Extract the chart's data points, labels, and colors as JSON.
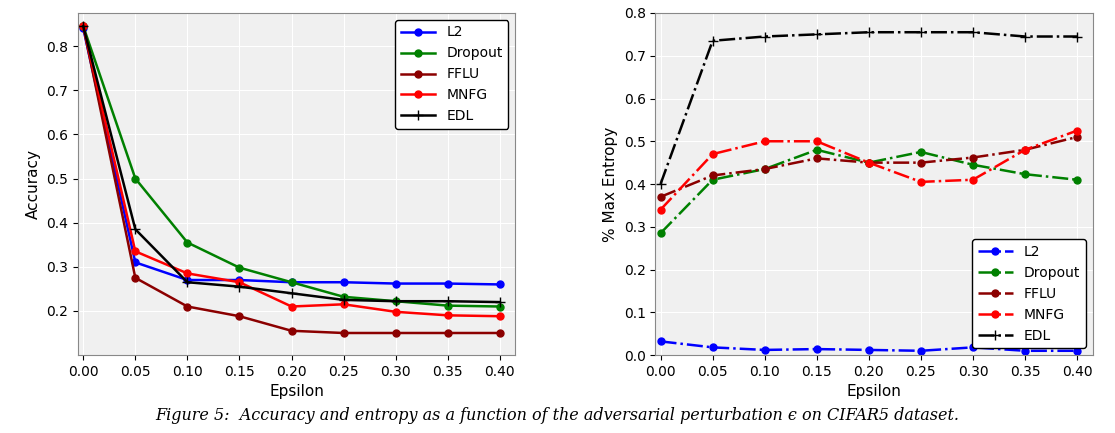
{
  "epsilon": [
    0.0,
    0.05,
    0.1,
    0.15,
    0.2,
    0.25,
    0.3,
    0.35,
    0.4
  ],
  "acc": {
    "L2": [
      0.84,
      0.31,
      0.27,
      0.27,
      0.265,
      0.265,
      0.262,
      0.262,
      0.26
    ],
    "Dropout": [
      0.845,
      0.5,
      0.355,
      0.298,
      0.265,
      0.232,
      0.222,
      0.212,
      0.21
    ],
    "FFLU": [
      0.845,
      0.275,
      0.21,
      0.188,
      0.155,
      0.15,
      0.15,
      0.15,
      0.15
    ],
    "MNFG": [
      0.845,
      0.335,
      0.285,
      0.265,
      0.21,
      0.215,
      0.198,
      0.19,
      0.188
    ],
    "EDL": [
      0.845,
      0.385,
      0.265,
      0.255,
      0.24,
      0.225,
      0.222,
      0.222,
      0.22
    ]
  },
  "ent": {
    "L2": [
      0.032,
      0.018,
      0.012,
      0.014,
      0.012,
      0.01,
      0.018,
      0.01,
      0.01
    ],
    "Dropout": [
      0.285,
      0.41,
      0.435,
      0.48,
      0.45,
      0.475,
      0.445,
      0.423,
      0.41
    ],
    "FFLU": [
      0.37,
      0.42,
      0.435,
      0.46,
      0.45,
      0.45,
      0.462,
      0.48,
      0.51
    ],
    "MNFG": [
      0.34,
      0.47,
      0.5,
      0.5,
      0.45,
      0.405,
      0.41,
      0.48,
      0.525
    ],
    "EDL": [
      0.4,
      0.735,
      0.745,
      0.75,
      0.755,
      0.755,
      0.755,
      0.745,
      0.745
    ]
  },
  "acc_colors": {
    "L2": "#0000ff",
    "Dropout": "#008000",
    "FFLU": "#8b0000",
    "MNFG": "#ff0000",
    "EDL": "#000000"
  },
  "ent_colors": {
    "L2": "#0000ff",
    "Dropout": "#008000",
    "FFLU": "#8b0000",
    "MNFG": "#ff0000",
    "EDL": "#000000"
  },
  "caption": "Figure 5:  Accuracy and entropy as a function of the adversarial perturbation ϵ on CIFAR5 dataset."
}
